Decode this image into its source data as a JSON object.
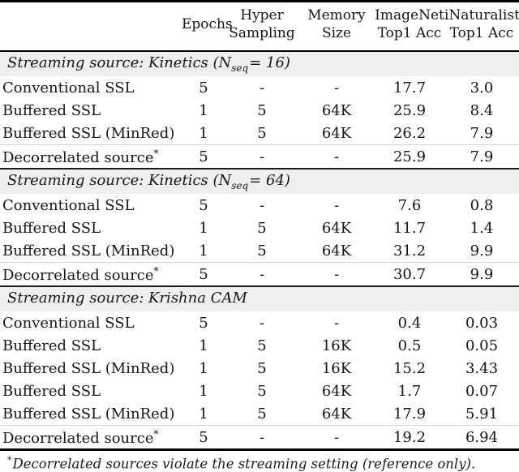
{
  "colors": {
    "section_header_bg": "#efefef",
    "rule_dark": "#000000",
    "rule_light": "#d8d8d8",
    "text": "#161616"
  },
  "header": {
    "epochs": {
      "line1": "Epochs"
    },
    "hyper": {
      "line1": "Hyper",
      "line2": "Sampling"
    },
    "memory": {
      "line1": "Memory",
      "line2": "Size"
    },
    "imagenet": {
      "line1": "ImageNet",
      "line2": "Top1 Acc"
    },
    "inat": {
      "line1": "iNaturalist",
      "line2": "Top1 Acc"
    }
  },
  "sections": [
    {
      "title_prefix": "Streaming source: Kinetics (",
      "math_var": "N",
      "math_sub": "seq",
      "title_suffix": "= 16)",
      "rows": [
        {
          "label": "Conventional SSL",
          "epochs": "5",
          "hyper": "-",
          "memory": "-",
          "imagenet": "17.7",
          "inat": "3.0"
        },
        {
          "label": "Buffered SSL",
          "epochs": "1",
          "hyper": "5",
          "memory": "64K",
          "imagenet": "25.9",
          "inat": "8.4"
        },
        {
          "label": "Buffered SSL (MinRed)",
          "epochs": "1",
          "hyper": "5",
          "memory": "64K",
          "imagenet": "26.2",
          "inat": "7.9"
        },
        {
          "label": "Decorrelated source",
          "sup": "*",
          "epochs": "5",
          "hyper": "-",
          "memory": "-",
          "imagenet": "25.9",
          "inat": "7.9"
        }
      ]
    },
    {
      "title_prefix": "Streaming source: Kinetics (",
      "math_var": "N",
      "math_sub": "seq",
      "title_suffix": "= 64)",
      "rows": [
        {
          "label": "Conventional SSL",
          "epochs": "5",
          "hyper": "-",
          "memory": "-",
          "imagenet": "7.6",
          "inat": "0.8"
        },
        {
          "label": "Buffered SSL",
          "epochs": "1",
          "hyper": "5",
          "memory": "64K",
          "imagenet": "11.7",
          "inat": "1.4"
        },
        {
          "label": "Buffered SSL (MinRed)",
          "epochs": "1",
          "hyper": "5",
          "memory": "64K",
          "imagenet": "31.2",
          "inat": "9.9"
        },
        {
          "label": "Decorrelated source",
          "sup": "*",
          "epochs": "5",
          "hyper": "-",
          "memory": "-",
          "imagenet": "30.7",
          "inat": "9.9"
        }
      ]
    },
    {
      "title_prefix": "Streaming source: Krishna CAM",
      "math_var": "",
      "math_sub": "",
      "title_suffix": "",
      "rows": [
        {
          "label": "Conventional SSL",
          "epochs": "5",
          "hyper": "-",
          "memory": "-",
          "imagenet": "0.4",
          "inat": "0.03"
        },
        {
          "label": "Buffered SSL",
          "epochs": "1",
          "hyper": "5",
          "memory": "16K",
          "imagenet": "0.5",
          "inat": "0.05"
        },
        {
          "label": "Buffered SSL (MinRed)",
          "epochs": "1",
          "hyper": "5",
          "memory": "16K",
          "imagenet": "15.2",
          "inat": "3.43"
        },
        {
          "label": "Buffered SSL",
          "epochs": "1",
          "hyper": "5",
          "memory": "64K",
          "imagenet": "1.7",
          "inat": "0.07"
        },
        {
          "label": "Buffered SSL (MinRed)",
          "epochs": "1",
          "hyper": "5",
          "memory": "64K",
          "imagenet": "17.9",
          "inat": "5.91"
        },
        {
          "label": "Decorrelated source",
          "sup": "*",
          "epochs": "5",
          "hyper": "-",
          "memory": "-",
          "imagenet": "19.2",
          "inat": "6.94"
        }
      ]
    }
  ],
  "footnote": {
    "sup": "*",
    "text": "Decorrelated sources violate the streaming setting (reference only)."
  }
}
